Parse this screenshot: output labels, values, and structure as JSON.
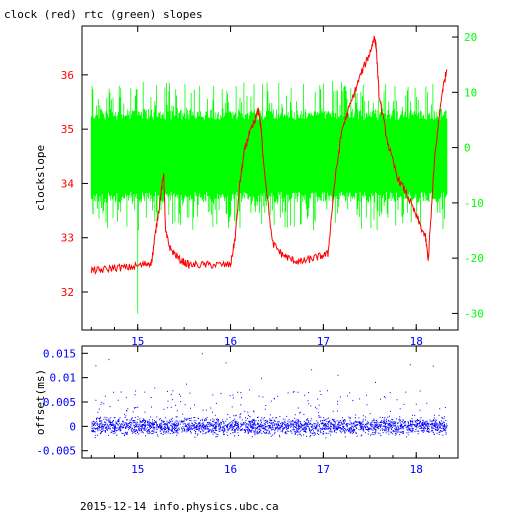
{
  "chart_data": [
    {
      "type": "line",
      "title": "clock (red) rtc (green) slopes",
      "ylabel": "clockslope",
      "x_ticks": [
        "15",
        "16",
        "17",
        "18"
      ],
      "xlim": [
        14.4,
        18.45
      ],
      "y_left": {
        "lim": [
          31.3,
          36.9
        ],
        "ticks": [
          "32",
          "33",
          "34",
          "35",
          "36"
        ]
      },
      "y_right": {
        "lim": [
          -33,
          22
        ],
        "ticks": [
          "-30",
          "-20",
          "-10",
          "0",
          "10",
          "20"
        ]
      },
      "colors": {
        "axes": "#000000",
        "red_series": "#ff0000",
        "green_series": "#00ff00",
        "left_ticks": "#ff0000",
        "right_ticks": "#00ff00"
      },
      "series": [
        {
          "name": "clock (red)",
          "axis": "left",
          "color": "#ff0000",
          "x": [
            14.5,
            14.6,
            14.75,
            14.9,
            15.05,
            15.15,
            15.2,
            15.25,
            15.28,
            15.3,
            15.35,
            15.45,
            15.55,
            15.7,
            15.85,
            16.0,
            16.05,
            16.1,
            16.15,
            16.2,
            16.25,
            16.3,
            16.33,
            16.35,
            16.45,
            16.55,
            16.65,
            16.75,
            16.85,
            16.95,
            17.05,
            17.12,
            17.2,
            17.3,
            17.4,
            17.5,
            17.55,
            17.57,
            17.6,
            17.7,
            17.8,
            17.9,
            18.0,
            18.1,
            18.13,
            18.2,
            18.28,
            18.33
          ],
          "y": [
            32.4,
            32.4,
            32.45,
            32.45,
            32.5,
            32.55,
            33.2,
            33.8,
            34.2,
            33.1,
            32.8,
            32.6,
            32.5,
            32.5,
            32.5,
            32.5,
            33.0,
            34.0,
            34.6,
            34.9,
            35.1,
            35.35,
            35.0,
            34.5,
            32.9,
            32.7,
            32.6,
            32.55,
            32.6,
            32.65,
            32.7,
            34.0,
            35.0,
            35.5,
            36.0,
            36.4,
            36.7,
            36.5,
            35.6,
            34.7,
            34.1,
            33.8,
            33.4,
            33.0,
            32.6,
            34.5,
            35.7,
            36.1
          ]
        },
        {
          "name": "rtc (green)",
          "axis": "right",
          "color": "#00ff00",
          "band_x": [
            14.5,
            18.33
          ],
          "band_y_core": [
            -8,
            5
          ],
          "band_y_spikes": [
            -15,
            12
          ],
          "outliers": [
            [
              15.0,
              -30
            ],
            [
              14.52,
              -12
            ],
            [
              16.9,
              -13
            ],
            [
              17.1,
              12
            ]
          ]
        }
      ]
    },
    {
      "type": "scatter",
      "ylabel": "offset(ms)",
      "x_ticks": [
        "15",
        "16",
        "17",
        "18"
      ],
      "xlim": [
        14.4,
        18.45
      ],
      "ylim": [
        -0.0065,
        0.0165
      ],
      "y_ticks": [
        "0.015",
        "0.01",
        "0.005",
        "0",
        "-0.005"
      ],
      "colors": {
        "points": "#0000ff",
        "tick_labels": "#0000ff",
        "axes": "#000000"
      },
      "series": [
        {
          "name": "offset",
          "x_range": [
            14.5,
            18.33
          ],
          "y_core": [
            -0.0025,
            0.0025
          ],
          "y_outliers_max": 0.015
        }
      ]
    }
  ],
  "footer": "2015-12-14 info.physics.ubc.ca"
}
